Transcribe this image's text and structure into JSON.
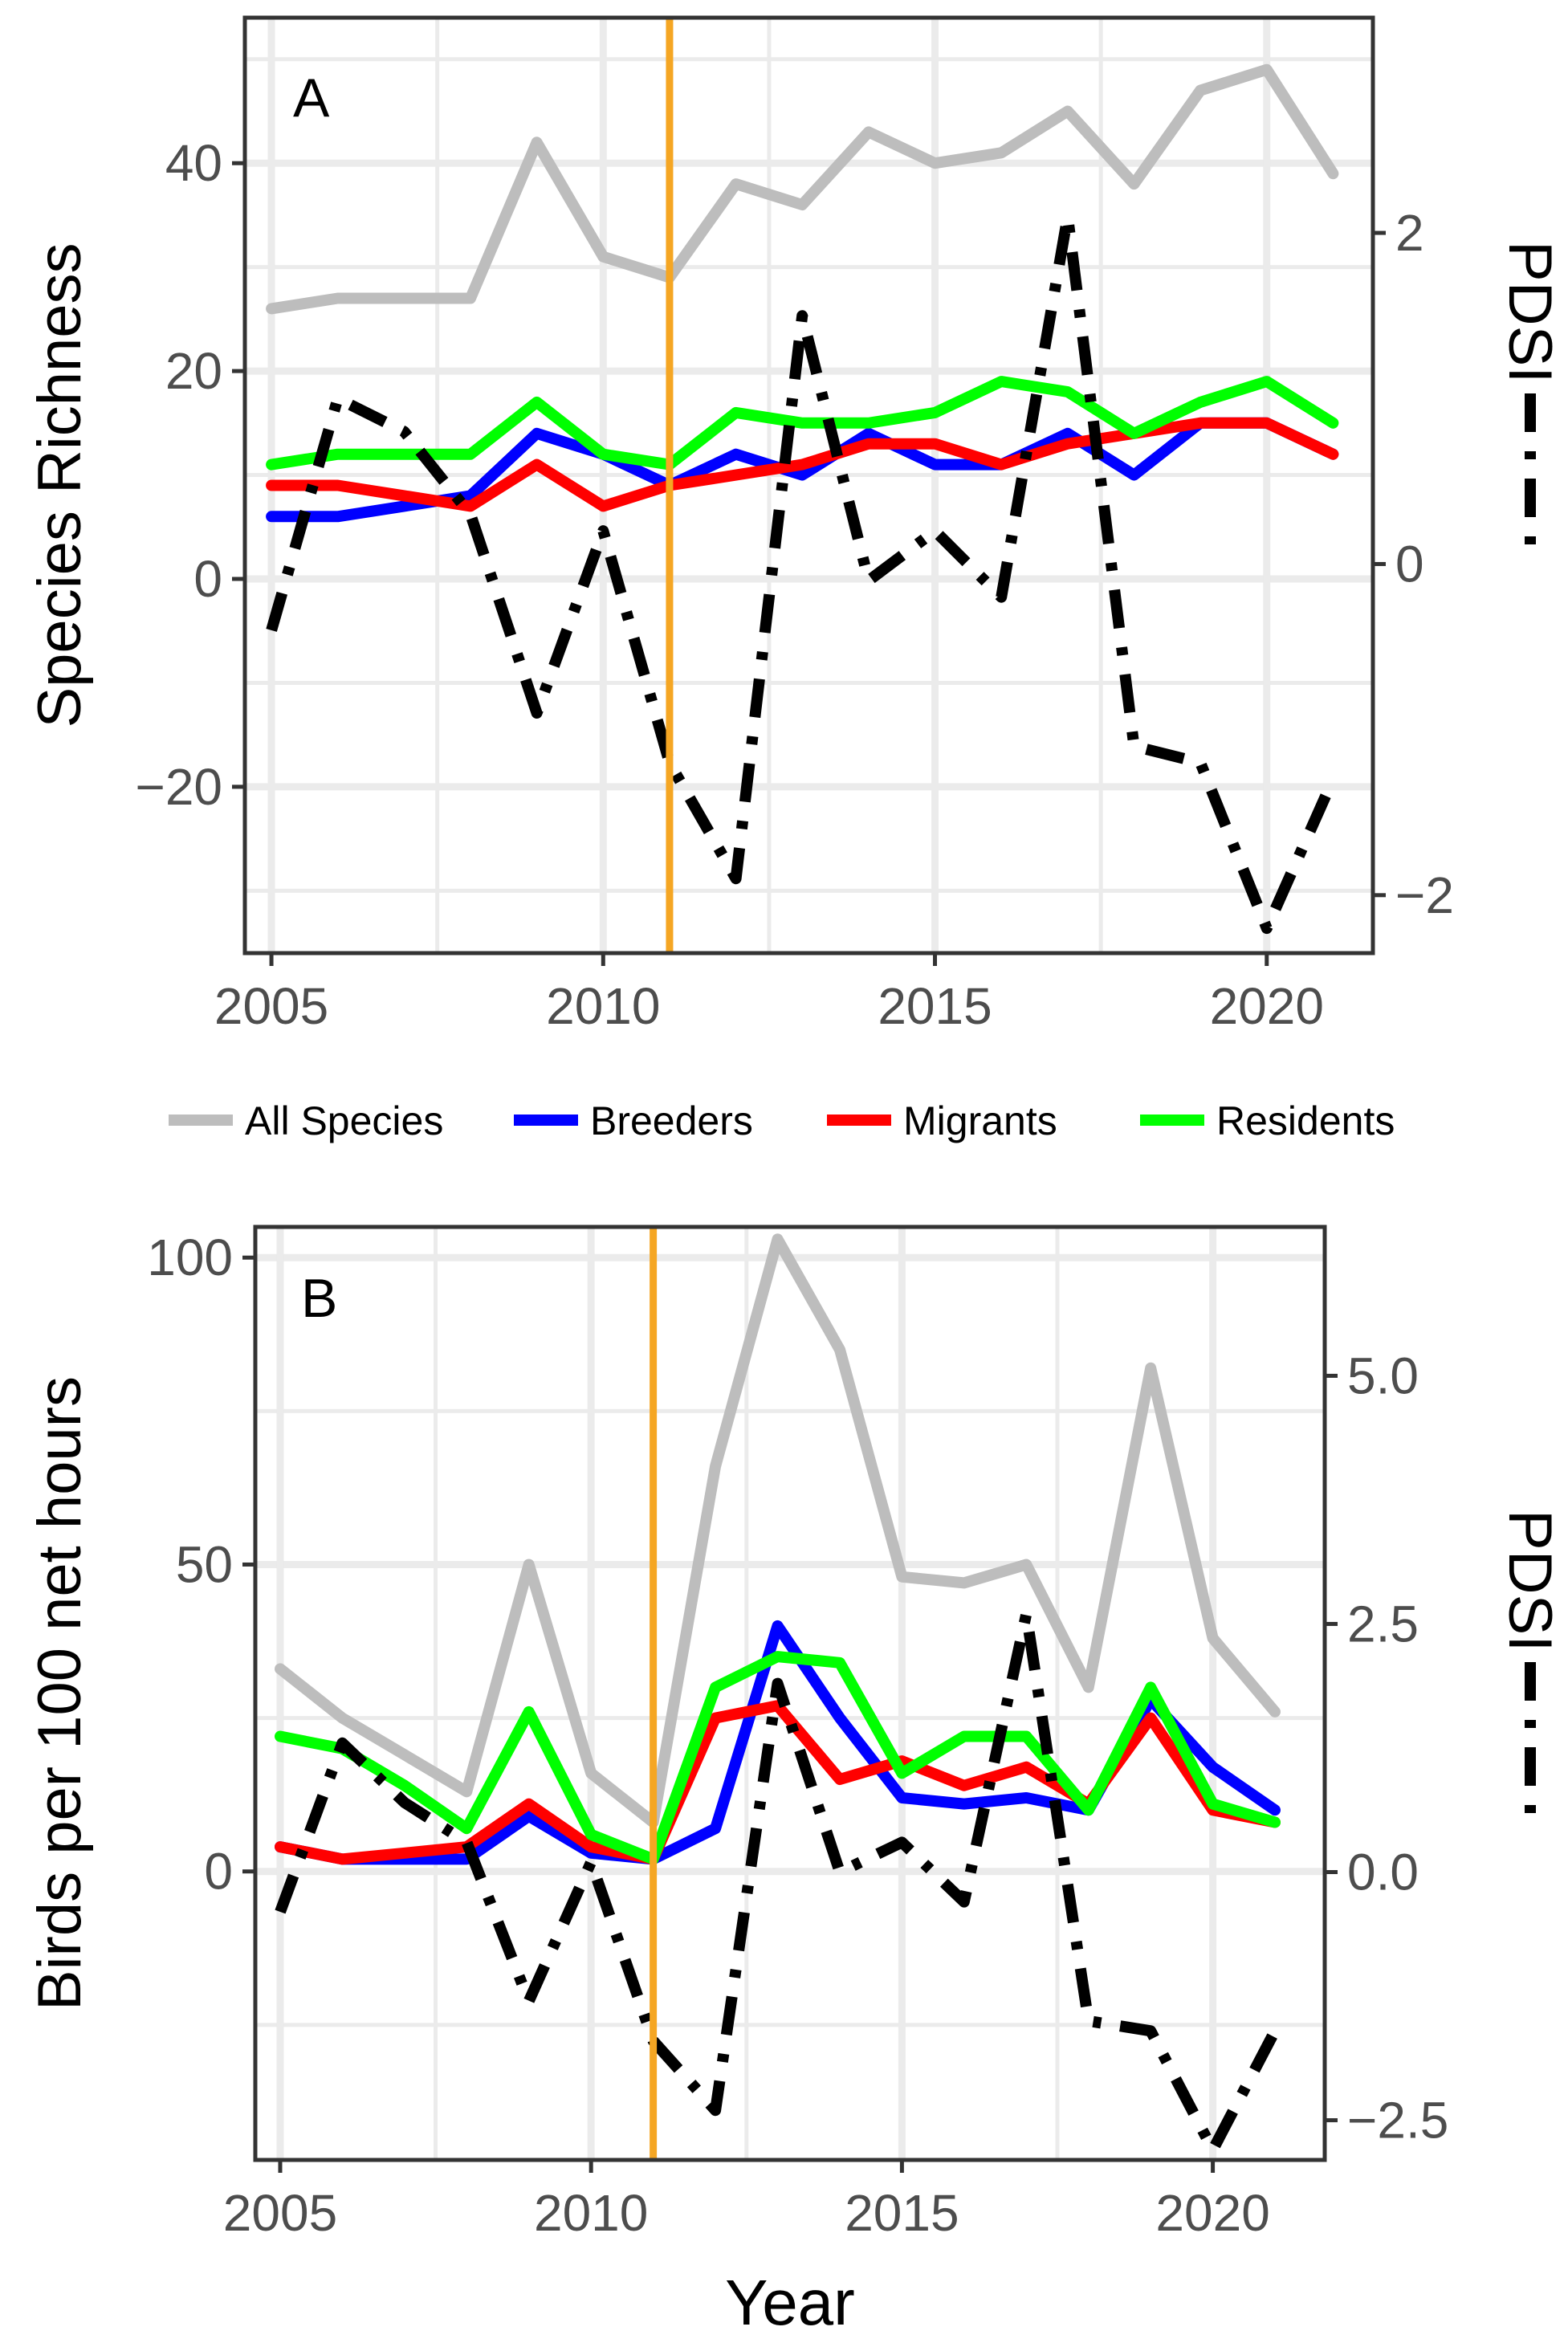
{
  "chart_data": [
    {
      "panel": "A",
      "type": "line",
      "ylabel": "Species Richness",
      "ylabel_right": "PDSI",
      "xlabel": "",
      "xlim": [
        2004.6,
        2021.6
      ],
      "ylim": [
        -36,
        54
      ],
      "ylim_right": [
        -2.35,
        3.3
      ],
      "x_ticks": [
        2005,
        2010,
        2015,
        2020
      ],
      "y_ticks": [
        -20,
        0,
        20,
        40
      ],
      "y_right_ticks": [
        -2,
        0,
        2
      ],
      "y_right_tick_labels": [
        "−2",
        "0",
        "2"
      ],
      "y_tick_labels": [
        "−20",
        "0",
        "20",
        "40"
      ],
      "vline_x": 2011,
      "x": [
        2005,
        2006,
        2007,
        2008,
        2009,
        2010,
        2011,
        2012,
        2013,
        2014,
        2015,
        2016,
        2017,
        2018,
        2019,
        2020,
        2021
      ],
      "series": [
        {
          "name": "All Species",
          "color": "#bdbdbd",
          "values": [
            26,
            27,
            27,
            27,
            42,
            31,
            29,
            38,
            36,
            43,
            40,
            41,
            45,
            38,
            47,
            49,
            39
          ]
        },
        {
          "name": "Breeders",
          "color": "#0000ff",
          "values": [
            6,
            6,
            7,
            8,
            14,
            12,
            9,
            12,
            10,
            14,
            11,
            11,
            14,
            10,
            15,
            15,
            12
          ]
        },
        {
          "name": "Migrants",
          "color": "#ff0000",
          "values": [
            9,
            9,
            8,
            7,
            11,
            7,
            9,
            10,
            11,
            13,
            13,
            11,
            13,
            14,
            15,
            15,
            12
          ]
        },
        {
          "name": "Residents",
          "color": "#00ff00",
          "values": [
            11,
            12,
            12,
            12,
            17,
            12,
            11,
            16,
            15,
            15,
            16,
            19,
            18,
            14,
            17,
            19,
            15
          ]
        }
      ],
      "pdsi": {
        "name": "PDSI",
        "color": "#000000",
        "values": [
          -0.4,
          1.0,
          0.8,
          0.3,
          -0.9,
          0.2,
          -1.2,
          -1.9,
          1.5,
          -0.1,
          0.2,
          -0.2,
          2.1,
          -1.1,
          -1.2,
          -2.2,
          -1.3
        ]
      }
    },
    {
      "panel": "B",
      "type": "line",
      "ylabel": "Birds per 100 net hours",
      "ylabel_right": "PDSI",
      "xlabel": "Year",
      "xlim": [
        2004.6,
        2021.8
      ],
      "ylim": [
        -47,
        105
      ],
      "ylim_right": [
        -2.9,
        6.5
      ],
      "x_ticks": [
        2005,
        2010,
        2015,
        2020
      ],
      "y_ticks": [
        0,
        50,
        100
      ],
      "y_right_ticks": [
        -2.5,
        0.0,
        2.5,
        5.0
      ],
      "y_right_tick_labels": [
        "−2.5",
        "0.0",
        "2.5",
        "5.0"
      ],
      "y_tick_labels": [
        "0",
        "50",
        "100"
      ],
      "vline_x": 2011,
      "x": [
        2005,
        2006,
        2007,
        2008,
        2009,
        2010,
        2011,
        2012,
        2013,
        2014,
        2015,
        2016,
        2017,
        2018,
        2019,
        2020,
        2021
      ],
      "series": [
        {
          "name": "All Species",
          "color": "#bdbdbd",
          "values": [
            33,
            25,
            19,
            13,
            50,
            16,
            8,
            66,
            103,
            85,
            48,
            47,
            50,
            30,
            82,
            38,
            26
          ]
        },
        {
          "name": "Breeders",
          "color": "#0000ff",
          "values": [
            4,
            2,
            2,
            2,
            9,
            3,
            2,
            7,
            40,
            25,
            12,
            11,
            12,
            10,
            28,
            17,
            10
          ]
        },
        {
          "name": "Migrants",
          "color": "#ff0000",
          "values": [
            4,
            2,
            3,
            4,
            11,
            4,
            2,
            25,
            27,
            15,
            18,
            14,
            17,
            11,
            25,
            10,
            8
          ]
        },
        {
          "name": "Residents",
          "color": "#00ff00",
          "values": [
            22,
            20,
            14,
            7,
            26,
            6,
            2,
            30,
            35,
            34,
            16,
            22,
            22,
            10,
            30,
            11,
            8
          ]
        }
      ],
      "pdsi": {
        "name": "PDSI",
        "color": "#000000",
        "values": [
          -0.4,
          1.3,
          0.7,
          0.3,
          -1.3,
          0.1,
          -1.7,
          -2.4,
          1.9,
          0.0,
          0.3,
          -0.3,
          2.6,
          -1.5,
          -1.6,
          -2.8,
          -1.6
        ]
      }
    }
  ],
  "legend": {
    "items": [
      {
        "label": "All Species",
        "color": "#bdbdbd"
      },
      {
        "label": "Breeders",
        "color": "#0000ff"
      },
      {
        "label": "Migrants",
        "color": "#ff0000"
      },
      {
        "label": "Residents",
        "color": "#00ff00"
      }
    ]
  },
  "colors": {
    "grid": "#ebebeb",
    "frame": "#333333",
    "vline": "#f5a623",
    "pdsi": "#000000"
  }
}
